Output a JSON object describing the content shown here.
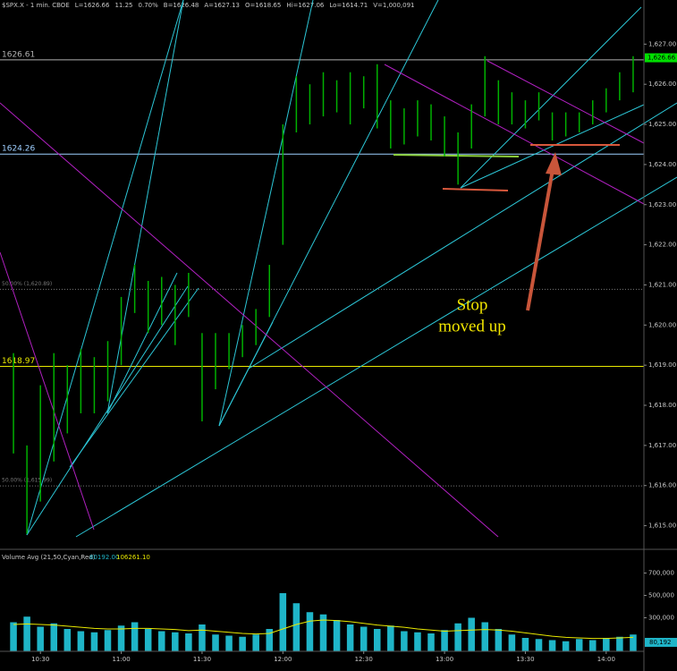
{
  "chart_data": {
    "type": "bar_range",
    "header": [
      "$SPX.X - 1 min.  CBOE",
      "L=1626.66",
      "11.25",
      "0.70%",
      "B=1626.48",
      "A=1627.13",
      "O=1618.65",
      "Hi=1627.06",
      "Lo=1614.71",
      "V=1,000,091"
    ],
    "x": [
      "10:20",
      "10:25",
      "10:30",
      "10:35",
      "10:40",
      "10:45",
      "10:50",
      "10:55",
      "11:00",
      "11:05",
      "11:10",
      "11:15",
      "11:20",
      "11:25",
      "11:30",
      "11:35",
      "11:40",
      "11:45",
      "11:50",
      "11:55",
      "12:00",
      "12:05",
      "12:10",
      "12:15",
      "12:20",
      "12:25",
      "12:30",
      "12:35",
      "12:40",
      "12:45",
      "12:50",
      "12:55",
      "13:00",
      "13:05",
      "13:10",
      "13:15",
      "13:20",
      "13:25",
      "13:30",
      "13:35",
      "13:40",
      "13:45",
      "13:50",
      "13:55",
      "14:00",
      "14:05",
      "14:10"
    ],
    "low": [
      1616.8,
      1614.8,
      1615.6,
      1616.6,
      1617.3,
      1617.8,
      1617.8,
      1618.1,
      1619.0,
      1620.3,
      1619.8,
      1620.0,
      1619.5,
      1620.2,
      1617.6,
      1618.4,
      1618.9,
      1619.2,
      1619.5,
      1620.2,
      1622.0,
      1624.8,
      1625.0,
      1625.2,
      1625.3,
      1625.0,
      1625.4,
      1624.9,
      1624.4,
      1624.5,
      1624.7,
      1624.6,
      1624.2,
      1623.5,
      1624.4,
      1625.2,
      1625.0,
      1625.0,
      1624.9,
      1625.1,
      1624.6,
      1624.7,
      1624.8,
      1625.0,
      1625.3,
      1625.6,
      1625.8
    ],
    "high": [
      1619.3,
      1617.0,
      1618.5,
      1619.3,
      1619.0,
      1619.4,
      1619.2,
      1619.6,
      1620.7,
      1621.5,
      1621.1,
      1621.2,
      1621.0,
      1621.3,
      1619.8,
      1619.8,
      1619.8,
      1620.0,
      1620.4,
      1621.5,
      1625.0,
      1626.2,
      1626.0,
      1626.3,
      1626.1,
      1626.3,
      1626.2,
      1626.5,
      1625.6,
      1625.4,
      1625.6,
      1625.5,
      1625.2,
      1624.8,
      1625.5,
      1626.7,
      1626.1,
      1625.8,
      1625.6,
      1625.8,
      1625.3,
      1625.3,
      1625.3,
      1625.6,
      1625.9,
      1626.3,
      1626.7
    ],
    "color": "#00b000",
    "xlim": [
      "10:15",
      "14:14"
    ],
    "xticks": [
      "10:30",
      "11:00",
      "11:30",
      "12:00",
      "12:30",
      "13:00",
      "13:30",
      "14:00"
    ],
    "ylim": [
      1614.5,
      1628.1
    ],
    "yticks": [
      {
        "value": 1615,
        "label": "1,615.00"
      },
      {
        "value": 1616,
        "label": "1,616.00"
      },
      {
        "value": 1617,
        "label": "1,617.00"
      },
      {
        "value": 1618,
        "label": "1,618.00"
      },
      {
        "value": 1619,
        "label": "1,619.00"
      },
      {
        "value": 1620,
        "label": "1,620.00"
      },
      {
        "value": 1621,
        "label": "1,621.00"
      },
      {
        "value": 1622,
        "label": "1,622.00"
      },
      {
        "value": 1623,
        "label": "1,623.00"
      },
      {
        "value": 1624,
        "label": "1,624.00"
      },
      {
        "value": 1625,
        "label": "1,625.00"
      },
      {
        "value": 1626,
        "label": "1,626.00"
      },
      {
        "value": 1627,
        "label": "1,627.00"
      }
    ],
    "levels": [
      {
        "value": 1626.61,
        "color": "#b0b0b0"
      },
      {
        "value": 1624.26,
        "color": "#9ecfff"
      },
      {
        "value": 1618.97,
        "color": "#e8e800"
      },
      {
        "value": 1620.89,
        "label": "50.00% (1,620.89)",
        "color": "#777777",
        "dashed": true
      },
      {
        "value": 1615.99,
        "label": "50.00% (1,615.99)",
        "color": "#777777",
        "dashed": true
      }
    ],
    "last": {
      "value": 1626.66,
      "label": "1,626.66",
      "color": "#00e000"
    },
    "annotation": [
      "Stop",
      "moved up"
    ],
    "volume": {
      "readout": [
        "Volume Avg (21,50,Cyan,Red)",
        "80192.00",
        "106261.10"
      ],
      "values": [
        260000,
        310000,
        220000,
        250000,
        200000,
        180000,
        170000,
        190000,
        230000,
        260000,
        200000,
        180000,
        170000,
        160000,
        240000,
        150000,
        140000,
        130000,
        150000,
        200000,
        520000,
        430000,
        350000,
        330000,
        280000,
        240000,
        220000,
        200000,
        230000,
        180000,
        170000,
        160000,
        190000,
        250000,
        300000,
        260000,
        200000,
        150000,
        120000,
        110000,
        100000,
        90000,
        110000,
        100000,
        120000,
        130000,
        150000
      ],
      "avg": [
        240000,
        245000,
        240000,
        235000,
        225000,
        215000,
        205000,
        200000,
        200000,
        205000,
        205000,
        200000,
        195000,
        185000,
        190000,
        180000,
        170000,
        160000,
        155000,
        160000,
        200000,
        240000,
        270000,
        280000,
        275000,
        265000,
        250000,
        235000,
        225000,
        215000,
        200000,
        190000,
        180000,
        185000,
        190000,
        195000,
        190000,
        180000,
        165000,
        150000,
        135000,
        125000,
        120000,
        115000,
        115000,
        120000,
        125000
      ],
      "color": "#1fb5c8",
      "avg_color": "#e8e800",
      "ylim": [
        0,
        880000
      ],
      "yticks": [
        {
          "value": 300000,
          "label": "300,000"
        },
        {
          "value": 500000,
          "label": "500,000"
        },
        {
          "value": 700000,
          "label": "700,000"
        }
      ],
      "last": {
        "value": 80192,
        "label": "80,192"
      }
    }
  }
}
